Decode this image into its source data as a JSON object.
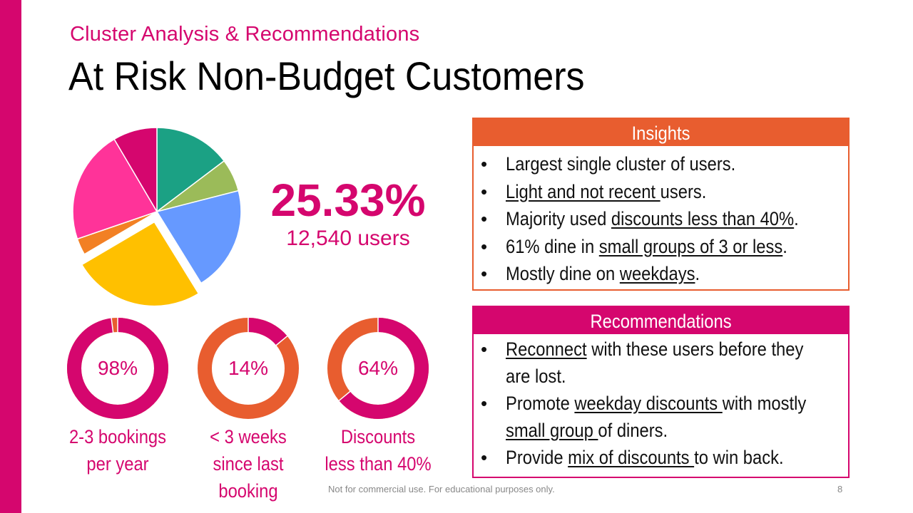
{
  "header": {
    "subtitle": "Cluster Analysis & Recommendations",
    "title": "At Risk Non-Budget Customers"
  },
  "colors": {
    "brand": "#D5066E",
    "orange": "#E85D2F"
  },
  "pie": {
    "exploded_slice": "yellow",
    "slices": [
      {
        "color": "#1BA184",
        "value": 14.7
      },
      {
        "color": "#9BBB59",
        "value": 6.3
      },
      {
        "color": "#6699FF",
        "value": 20.2
      },
      {
        "color": "#FFC000",
        "value": 25.33
      },
      {
        "color": "#F28024",
        "value": 3.2
      },
      {
        "color": "#FF3399",
        "value": 21.8
      },
      {
        "color": "#D5066E",
        "value": 8.47
      }
    ]
  },
  "highlight": {
    "percent": "25.33%",
    "users": "12,540 users"
  },
  "donuts": [
    {
      "label": "98%",
      "fraction": 0.98,
      "caption_line1": "2-3 bookings",
      "caption_line2": "per year",
      "caption_line3": ""
    },
    {
      "label": "14%",
      "fraction": 0.14,
      "caption_line1": "< 3 weeks",
      "caption_line2": "since last",
      "caption_line3": "booking"
    },
    {
      "label": "64%",
      "fraction": 0.64,
      "caption_line1": "Discounts",
      "caption_line2": "less than 40%",
      "caption_line3": ""
    }
  ],
  "insights": {
    "title": "Insights",
    "items": [
      {
        "pre": "Largest single cluster of users.",
        "u": "",
        "post": ""
      },
      {
        "pre": "",
        "u": "Light and not recent ",
        "post": "users."
      },
      {
        "pre": "Majority used ",
        "u": "discounts less than 40%",
        "post": "."
      },
      {
        "pre": "61% dine in ",
        "u": "small groups of 3 or less",
        "post": "."
      },
      {
        "pre": "Mostly dine on ",
        "u": "weekdays",
        "post": "."
      }
    ]
  },
  "recommendations": {
    "title": "Recommendations",
    "items": [
      {
        "u1": "Reconnect",
        "t1": " with these users before they",
        "cont": "are lost."
      },
      {
        "pre": "Promote ",
        "u1": "weekday discounts ",
        "t1": "with mostly",
        "cont_u": "small group ",
        "cont_t": "of diners."
      },
      {
        "pre": "Provide ",
        "u1": "mix of discounts ",
        "t1": "to win back."
      }
    ]
  },
  "footer": {
    "note": "Not for commercial use. For educational purposes only.",
    "page": "8"
  }
}
